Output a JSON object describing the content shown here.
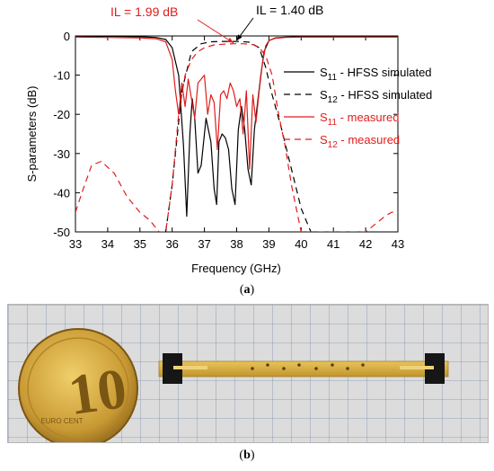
{
  "chart_data": {
    "type": "line",
    "xlabel": "Frequency (GHz)",
    "ylabel": "S-parameters (dB)",
    "xlim": [
      33,
      43
    ],
    "ylim": [
      -50,
      0
    ],
    "xticks": [
      33,
      34,
      35,
      36,
      37,
      38,
      39,
      40,
      41,
      42,
      43
    ],
    "yticks": [
      0,
      -10,
      -20,
      -30,
      -40,
      -50
    ],
    "grid": false,
    "legend_position": "right",
    "series": [
      {
        "name": "S11 - HFSS simulated",
        "name_parts": [
          "S",
          "11",
          " - HFSS simulated"
        ],
        "color": "#000000",
        "dash": "solid",
        "x": [
          33,
          34,
          35,
          35.5,
          35.8,
          36.0,
          36.2,
          36.35,
          36.45,
          36.55,
          36.62,
          36.7,
          36.8,
          36.9,
          37.05,
          37.2,
          37.3,
          37.38,
          37.45,
          37.55,
          37.65,
          37.75,
          37.85,
          37.95,
          38.05,
          38.15,
          38.25,
          38.35,
          38.45,
          38.55,
          38.65,
          38.75,
          38.85,
          39.0,
          39.2,
          39.5,
          40,
          41,
          42,
          43
        ],
        "y": [
          -0.1,
          -0.1,
          -0.2,
          -0.4,
          -0.9,
          -3,
          -10,
          -28,
          -46,
          -25,
          -16,
          -21,
          -35,
          -33,
          -21,
          -27,
          -39,
          -43,
          -27,
          -25,
          -26,
          -29,
          -39,
          -43,
          -24,
          -18,
          -24,
          -34,
          -38,
          -24,
          -17,
          -10,
          -4,
          -1.2,
          -0.5,
          -0.3,
          -0.2,
          -0.1,
          -0.1,
          -0.1
        ]
      },
      {
        "name": "S12 - HFSS simulated",
        "name_parts": [
          "S",
          "12",
          " - HFSS simulated"
        ],
        "color": "#000000",
        "dash": "dashed",
        "x": [
          35.8,
          36.0,
          36.3,
          36.6,
          36.9,
          37.2,
          37.5,
          37.8,
          38.1,
          38.4,
          38.7,
          38.9,
          39.1,
          39.4,
          39.7,
          40.0,
          40.3,
          40.4
        ],
        "y": [
          -50,
          -38,
          -14,
          -4,
          -2,
          -1.5,
          -1.4,
          -1.4,
          -1.4,
          -1.6,
          -3,
          -8,
          -15,
          -24,
          -34,
          -44,
          -50,
          -50
        ]
      },
      {
        "name": "S11 - measured",
        "name_parts": [
          "S",
          "11",
          " - measured"
        ],
        "color": "#e01c1c",
        "dash": "solid",
        "x": [
          33,
          34,
          35,
          35.5,
          35.8,
          36.0,
          36.1,
          36.2,
          36.3,
          36.4,
          36.5,
          36.6,
          36.7,
          36.8,
          36.9,
          37.0,
          37.1,
          37.2,
          37.3,
          37.4,
          37.5,
          37.6,
          37.7,
          37.8,
          37.9,
          38.0,
          38.1,
          38.2,
          38.3,
          38.4,
          38.5,
          38.6,
          38.7,
          38.8,
          38.9,
          39.0,
          39.2,
          39.5,
          40,
          41,
          42,
          43
        ],
        "y": [
          -0.3,
          -0.4,
          -0.5,
          -0.7,
          -1.5,
          -6,
          -14,
          -20,
          -12,
          -18,
          -11,
          -16,
          -21,
          -12,
          -11,
          -10,
          -20,
          -15,
          -17,
          -29,
          -15,
          -14,
          -16,
          -12,
          -14,
          -18,
          -16,
          -25,
          -14,
          -34,
          -15,
          -22,
          -14,
          -7,
          -2.5,
          -1.2,
          -0.6,
          -0.4,
          -0.3,
          -0.3,
          -0.3,
          -0.3
        ]
      },
      {
        "name": "S12 - measured",
        "name_parts": [
          "S",
          "12",
          " - measured"
        ],
        "color": "#e01c1c",
        "dash": "dashed",
        "x": [
          33,
          33.2,
          33.5,
          33.8,
          34.2,
          34.6,
          35.0,
          35.3,
          35.6,
          35.8,
          36.0,
          36.2,
          36.4,
          36.6,
          36.8,
          37.0,
          37.3,
          37.6,
          37.9,
          38.2,
          38.5,
          38.7,
          38.9,
          39.1,
          39.3,
          39.5,
          39.7,
          39.9,
          40.0,
          40.2,
          40.5,
          41.0,
          41.5,
          42.0,
          42.3,
          42.6,
          42.8,
          43.0
        ],
        "y": [
          -45,
          -40,
          -33,
          -32,
          -35,
          -41,
          -45,
          -47,
          -50,
          -50,
          -38,
          -20,
          -10,
          -6,
          -4,
          -3,
          -2.3,
          -2.1,
          -2,
          -2,
          -2.2,
          -3,
          -5,
          -10,
          -20,
          -28,
          -38,
          -46,
          -50,
          -50,
          -50,
          -50,
          -50,
          -50,
          -48,
          -46,
          -45,
          -45
        ]
      }
    ],
    "annotations": [
      {
        "text": "IL =  1.99 dB",
        "color": "#e01c1c",
        "points_to": [
          37.9,
          -2
        ]
      },
      {
        "text": "IL = 1.40 dB",
        "color": "#000000",
        "points_to": [
          38.0,
          -1.4
        ]
      }
    ]
  },
  "captions": {
    "a_label": "a",
    "b_label": "b"
  },
  "photo": {
    "coin_denomination": "10",
    "coin_text": "EURO CENT",
    "background_color": "#dcdcdc",
    "grid_color": "#7d8fae",
    "board_color": "#d5ab3c",
    "coin_color": "#c99a34"
  }
}
